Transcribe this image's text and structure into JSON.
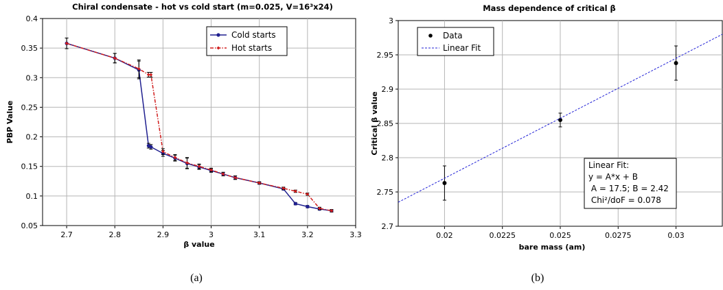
{
  "chart_data": [
    {
      "type": "line",
      "title": "Chiral condensate - hot vs cold start (m=0.025, V=16³x24)",
      "xlabel": "β value",
      "ylabel": "PBP Value",
      "xlim": [
        2.65,
        3.3
      ],
      "ylim": [
        0.05,
        0.4
      ],
      "xticks": [
        "2.7",
        "2.8",
        "2.9",
        "3",
        "3.1",
        "3.2",
        "3.3"
      ],
      "yticks": [
        "0.05",
        "0.1",
        "0.15",
        "0.2",
        "0.25",
        "0.3",
        "0.35",
        "0.4"
      ],
      "grid": true,
      "legend": "top-right",
      "caption": "(a)",
      "series": [
        {
          "name": "Cold starts",
          "color": "#1f1f8f",
          "line": "solid",
          "x": [
            2.7,
            2.8,
            2.85,
            2.87,
            2.875,
            2.9,
            2.925,
            2.95,
            2.975,
            3.0,
            3.025,
            3.05,
            3.1,
            3.15,
            3.175,
            3.2,
            3.225,
            3.25
          ],
          "y": [
            0.358,
            0.333,
            0.313,
            0.185,
            0.183,
            0.172,
            0.164,
            0.155,
            0.149,
            0.143,
            0.137,
            0.131,
            0.122,
            0.112,
            0.087,
            0.082,
            0.078,
            0.075
          ],
          "err": [
            0.009,
            0.008,
            0.015,
            0.004,
            0.004,
            0.005,
            0.005,
            0.009,
            0.004,
            0.003,
            0.003,
            0.003,
            0.002,
            0.002,
            0.002,
            0.002,
            0.002,
            0.002
          ]
        },
        {
          "name": "Hot starts",
          "color": "#d01c1c",
          "line": "dash-dot",
          "x": [
            2.7,
            2.8,
            2.85,
            2.87,
            2.875,
            2.9,
            2.925,
            2.95,
            2.975,
            3.0,
            3.025,
            3.05,
            3.1,
            3.15,
            3.175,
            3.2,
            3.225,
            3.25
          ],
          "y": [
            0.358,
            0.333,
            0.315,
            0.305,
            0.305,
            0.175,
            0.165,
            0.156,
            0.15,
            0.144,
            0.137,
            0.131,
            0.122,
            0.113,
            0.108,
            0.103,
            0.079,
            0.075
          ],
          "err": [
            0.009,
            0.008,
            0.015,
            0.004,
            0.004,
            0.005,
            0.005,
            0.009,
            0.004,
            0.003,
            0.003,
            0.003,
            0.002,
            0.002,
            0.002,
            0.002,
            0.002,
            0.002
          ]
        }
      ]
    },
    {
      "type": "scatter",
      "title": "Mass dependence of critical β",
      "xlabel": "bare mass (am)",
      "ylabel": "Critical β value",
      "xlim": [
        0.018,
        0.032
      ],
      "ylim": [
        2.7,
        3.0
      ],
      "xticks": [
        "0.02",
        "0.0225",
        "0.025",
        "0.0275",
        "0.03"
      ],
      "yticks": [
        "2.7",
        "2.75",
        "2.8",
        "2.85",
        "2.9",
        "2.95",
        "3"
      ],
      "grid": true,
      "legend": "top-left",
      "caption": "(b)",
      "series": [
        {
          "name": "Data",
          "color": "#000000",
          "x": [
            0.02,
            0.025,
            0.03
          ],
          "y": [
            2.763,
            2.855,
            2.938
          ],
          "err": [
            0.025,
            0.01,
            0.025
          ]
        },
        {
          "name": "Linear Fit",
          "color": "#1f1fd6",
          "line": "dashed",
          "x": [
            0.018,
            0.032
          ],
          "y": [
            2.735,
            2.98
          ]
        }
      ],
      "fit_box": [
        "Linear Fit:",
        "y = A*x + B",
        " A = 17.5; B = 2.42",
        " Chi²/doF = 0.078"
      ]
    }
  ]
}
